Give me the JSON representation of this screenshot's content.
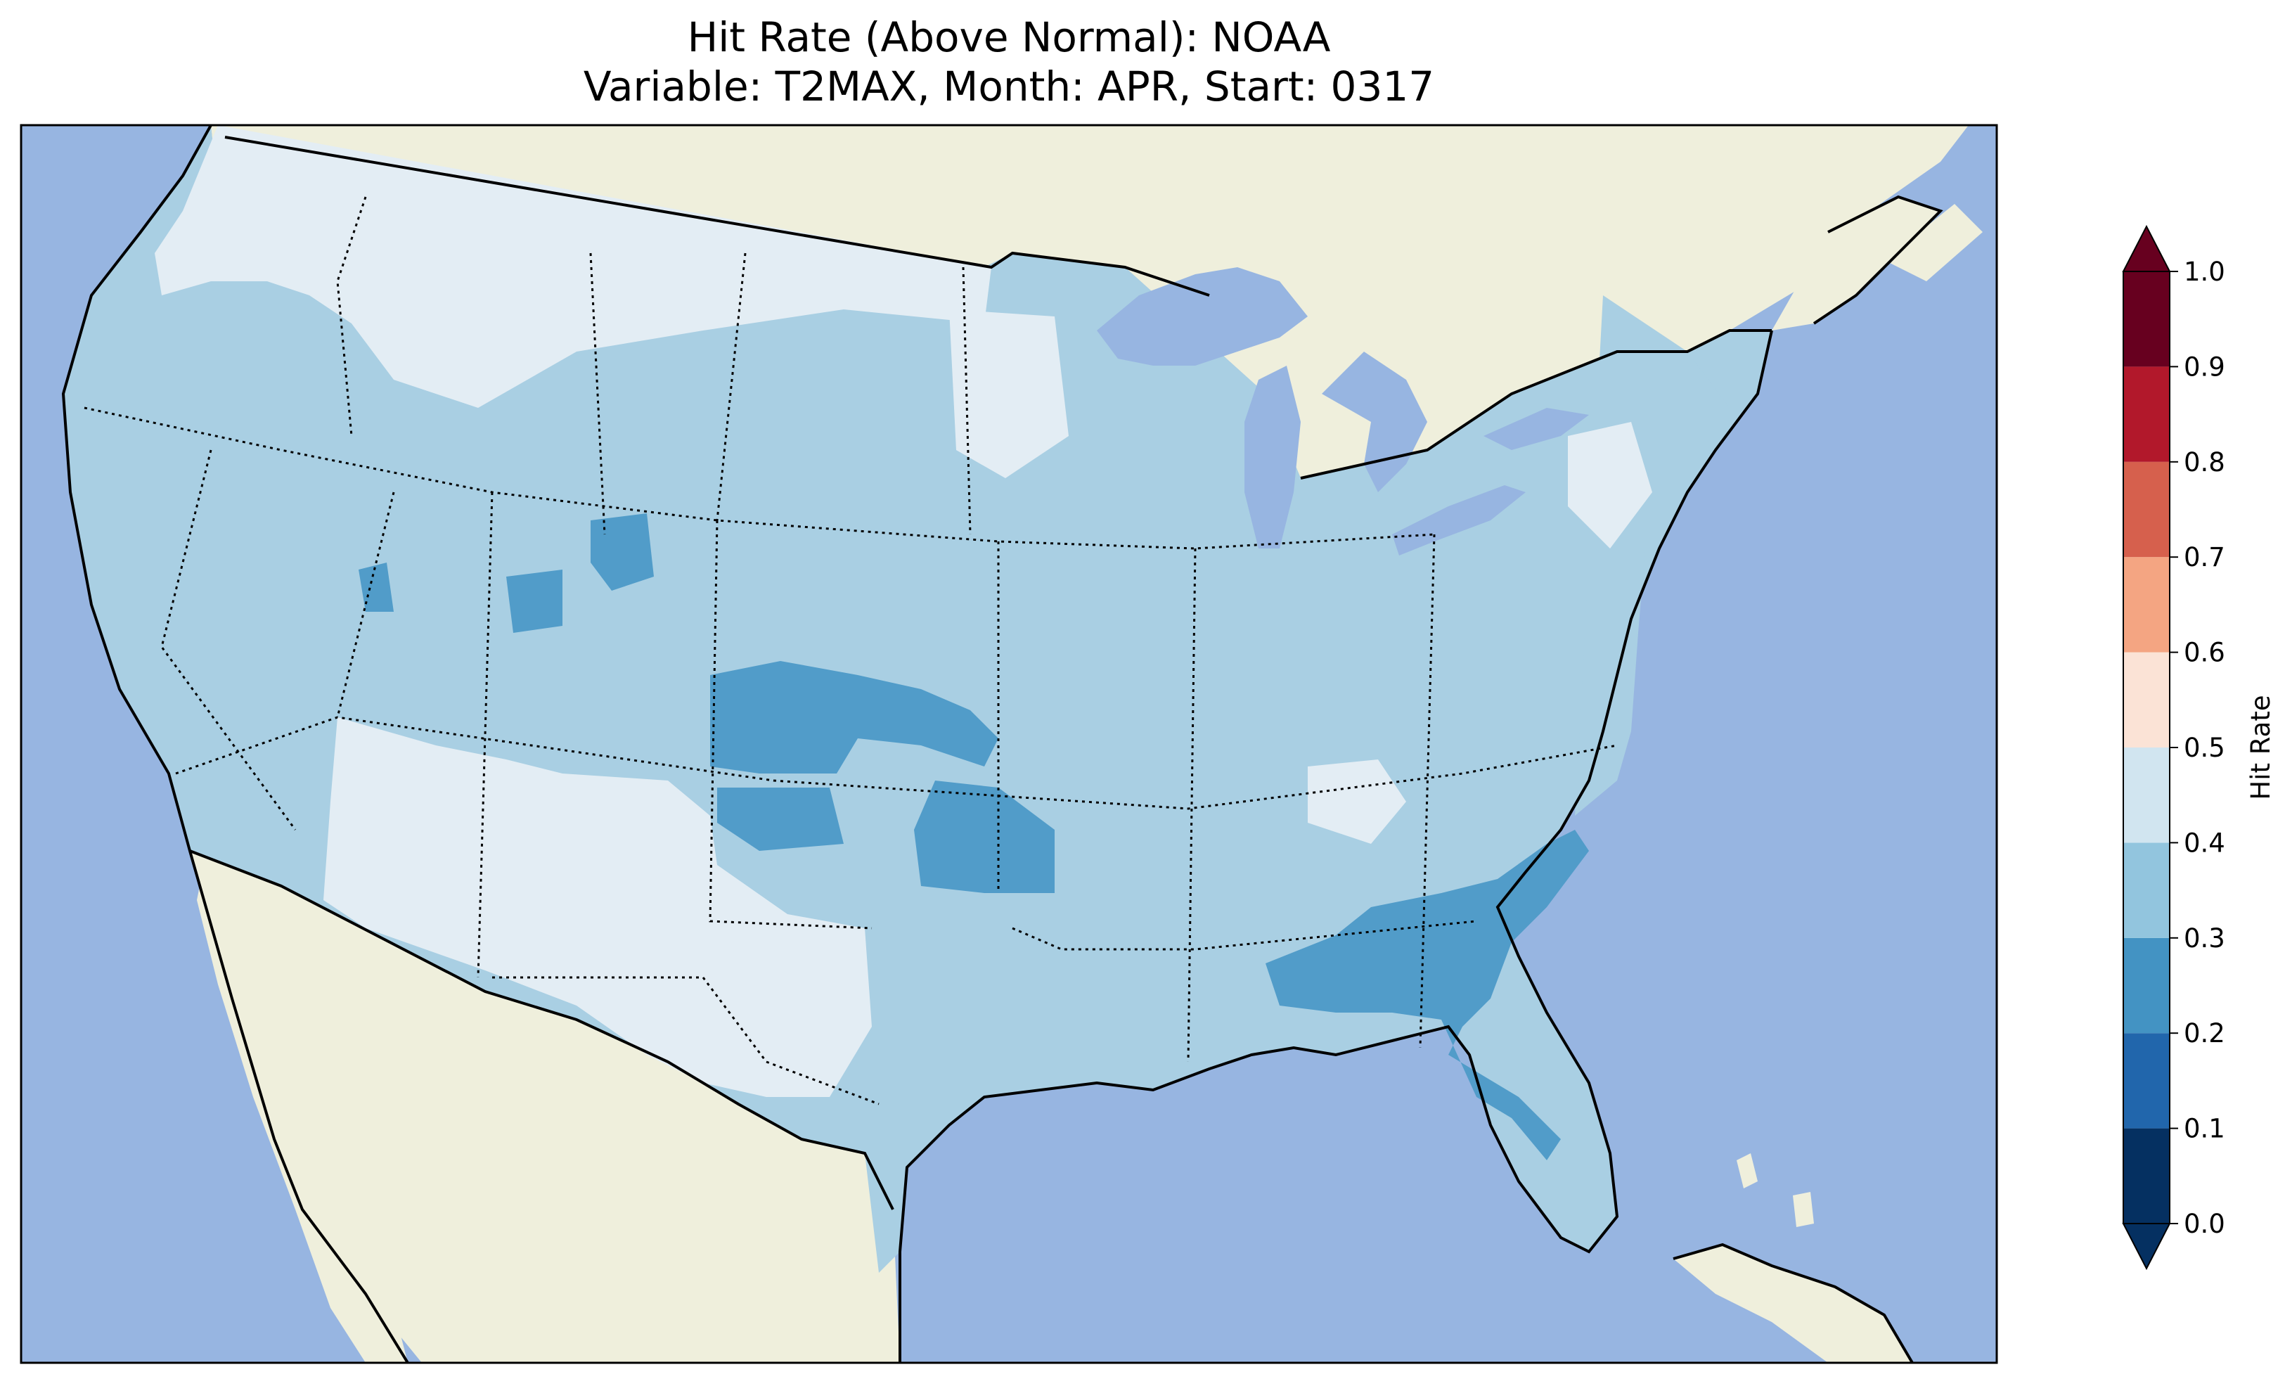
{
  "title": {
    "line1": "Hit Rate (Above Normal): NOAA",
    "line2": "Variable: T2MAX, Month: APR, Start: 0317"
  },
  "colorbar": {
    "label": "Hit Rate",
    "ticks": [
      "0.0",
      "0.1",
      "0.2",
      "0.3",
      "0.4",
      "0.5",
      "0.6",
      "0.7",
      "0.8",
      "0.9",
      "1.0"
    ],
    "colors": [
      "#053061",
      "#2166ac",
      "#4393c3",
      "#92c5de",
      "#d1e5f0",
      "#fbe3d6",
      "#f4a582",
      "#d6604d",
      "#b2182b",
      "#67001f"
    ],
    "under_color": "#053061",
    "over_color": "#67001f",
    "extend": "both"
  },
  "map": {
    "ocean_color": "#97b5e1",
    "land_color": "#efefdc",
    "class_colors": {
      "0.4-0.5": "#e3edf4",
      "0.3-0.4": "#a9cfe3",
      "0.2-0.3": "#519cc9"
    },
    "dominant_class": "0.3-0.4",
    "region_classes": [
      {
        "region": "Pacific Northwest interior / northern Rockies",
        "class": "0.4-0.5"
      },
      {
        "region": "Southwest (Arizona, New Mexico, west Texas)",
        "class": "0.4-0.5"
      },
      {
        "region": "Central Plains (Kansas, Oklahoma)",
        "class": "0.2-0.3"
      },
      {
        "region": "Southeast (Georgia, Florida)",
        "class": "0.2-0.3"
      },
      {
        "region": "West, Midwest, East",
        "class": "0.3-0.4"
      }
    ]
  }
}
